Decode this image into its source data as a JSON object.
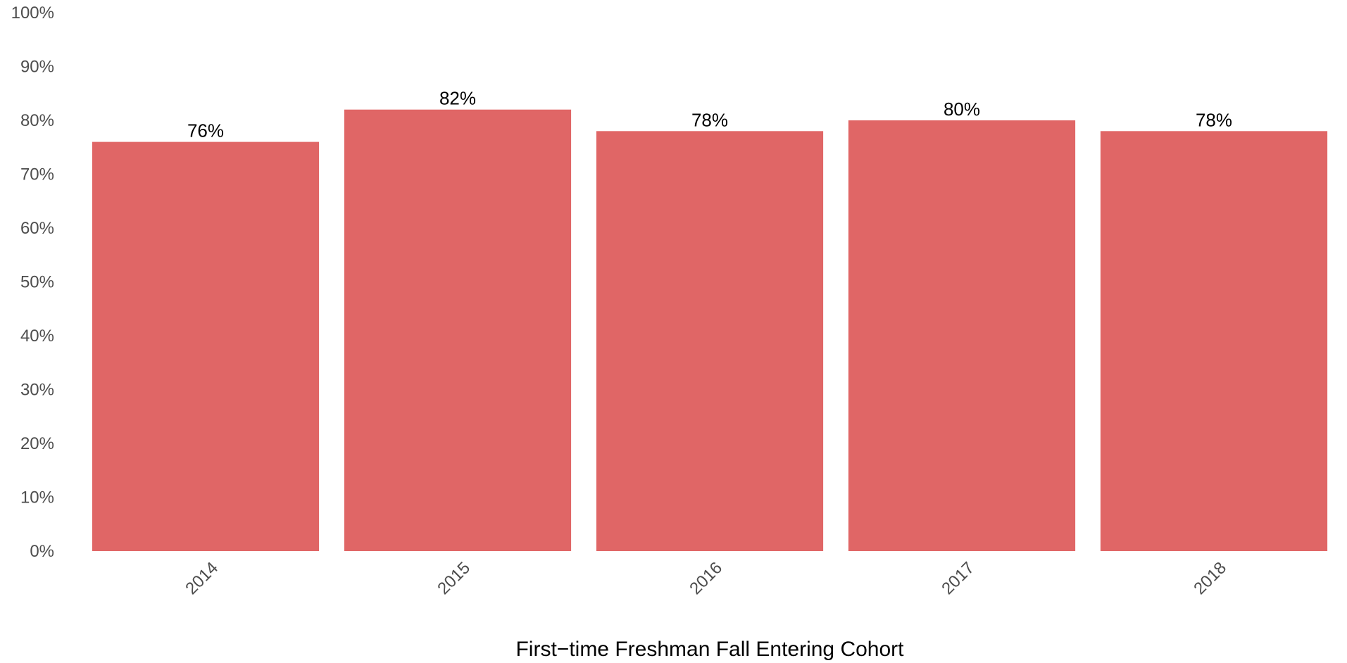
{
  "chart_data": {
    "type": "bar",
    "title": "",
    "xlabel": "First−time Freshman Fall Entering Cohort",
    "ylabel": "",
    "categories": [
      "2014",
      "2015",
      "2016",
      "2017",
      "2018"
    ],
    "values": [
      76,
      82,
      78,
      80,
      78
    ],
    "value_labels": [
      "76%",
      "82%",
      "78%",
      "80%",
      "78%"
    ],
    "ylim": [
      0,
      100
    ],
    "y_ticks": [
      0,
      10,
      20,
      30,
      40,
      50,
      60,
      70,
      80,
      90,
      100
    ],
    "y_tick_labels": [
      "0%",
      "10%",
      "20%",
      "30%",
      "40%",
      "50%",
      "60%",
      "70%",
      "80%",
      "90%",
      "100%"
    ],
    "grid": false,
    "legend": "none",
    "bar_color": "#E06666"
  }
}
